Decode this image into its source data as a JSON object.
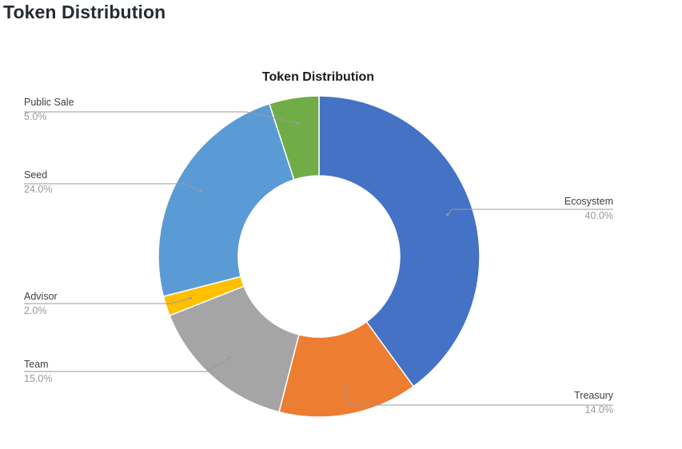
{
  "page": {
    "heading": "Token Distribution"
  },
  "chart_data": {
    "type": "pie",
    "donut": true,
    "title": "Token Distribution",
    "unit": "%",
    "slices": [
      {
        "label": "Ecosystem",
        "value": 40.0,
        "display": "40.0%",
        "color": "#4472c4",
        "label_side": "right"
      },
      {
        "label": "Treasury",
        "value": 14.0,
        "display": "14.0%",
        "color": "#ed7d31",
        "label_side": "right"
      },
      {
        "label": "Team",
        "value": 15.0,
        "display": "15.0%",
        "color": "#a5a5a5",
        "label_side": "left"
      },
      {
        "label": "Advisor",
        "value": 2.0,
        "display": "2.0%",
        "color": "#ffc000",
        "label_side": "left"
      },
      {
        "label": "Seed",
        "value": 24.0,
        "display": "24.0%",
        "color": "#5b9bd5",
        "label_side": "left"
      },
      {
        "label": "Public Sale",
        "value": 5.0,
        "display": "5.0%",
        "color": "#70ad47",
        "label_side": "left"
      }
    ],
    "start_angle": "12 o'clock",
    "direction": "clockwise",
    "legend": "none",
    "data_labels": "outside with leader lines"
  }
}
